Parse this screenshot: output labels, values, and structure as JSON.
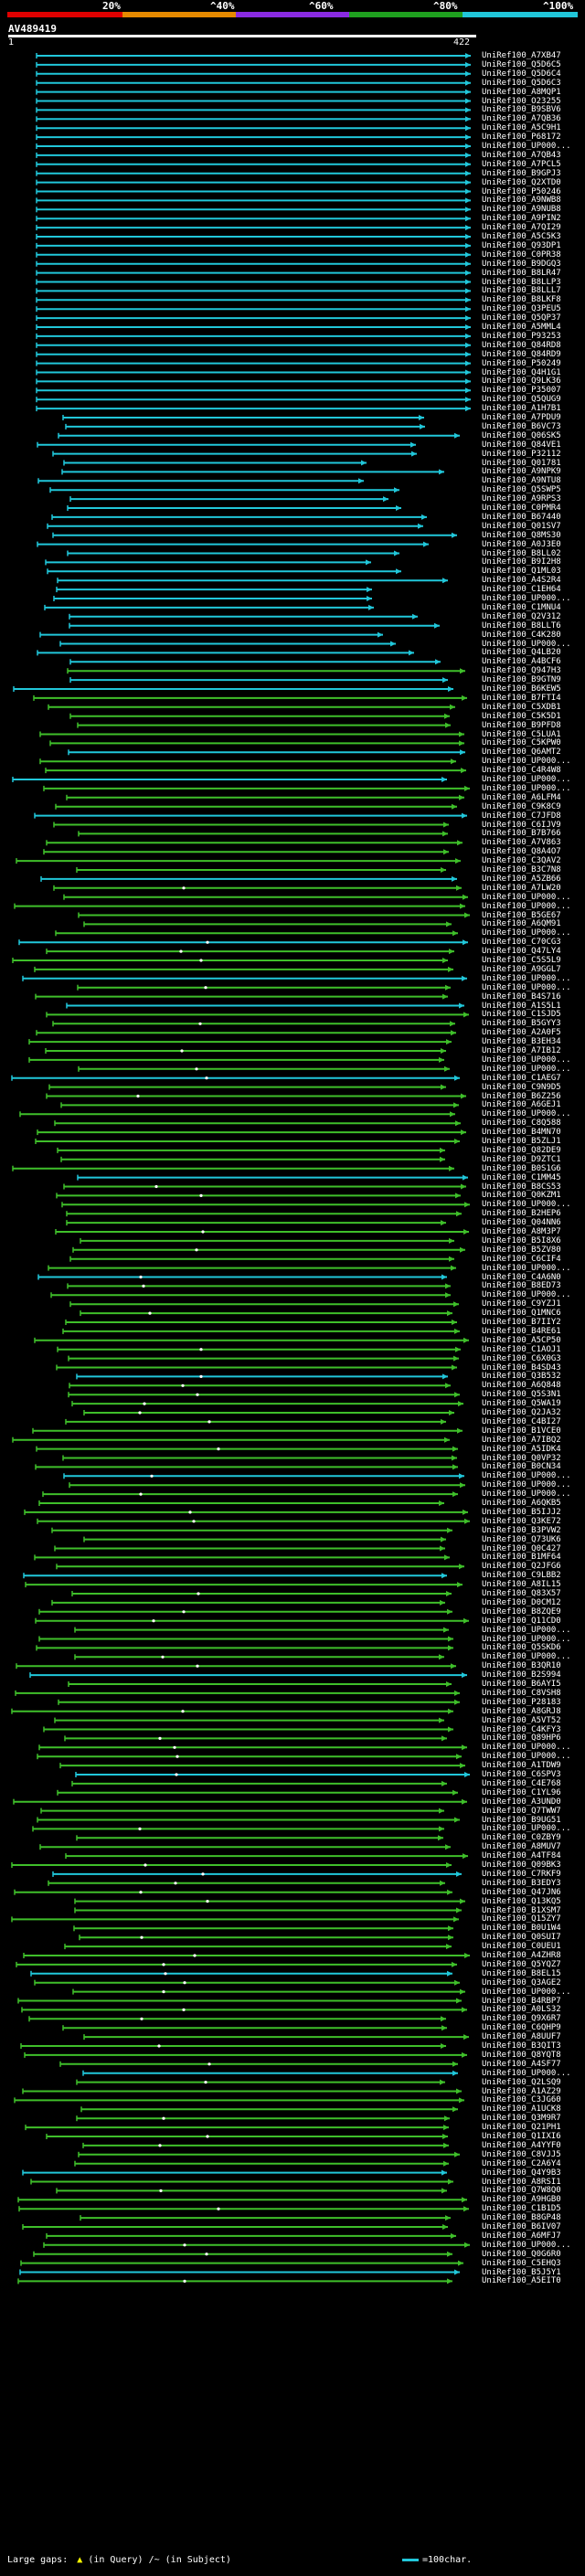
{
  "header": {
    "percent_labels": [
      "20%",
      "^40%",
      "^60%",
      "^80%",
      "^100%"
    ],
    "identity_colors": [
      "#e00000",
      "#e68a00",
      "#8a2be2",
      "#1fa01f",
      "#21c7da"
    ],
    "query_id": "AV489419",
    "scale_start": "1",
    "scale_end": "422"
  },
  "hits": [
    "UniRef100_A7XB47",
    "UniRef100_Q5D6C5",
    "UniRef100_Q5D6C4",
    "UniRef100_Q5D6C3",
    "UniRef100_A8MQP1",
    "UniRef100_O23255",
    "UniRef100_B9SBV6",
    "UniRef100_A7QB36",
    "UniRef100_A5C9H1",
    "UniRef100_P68172",
    "UniRef100_UP000...",
    "UniRef100_A7QB43",
    "UniRef100_A7PCL5",
    "UniRef100_B9GPJ3",
    "UniRef100_Q2XTD0",
    "UniRef100_P50246",
    "UniRef100_A9NWB8",
    "UniRef100_A9NUB8",
    "UniRef100_A9PIN2",
    "UniRef100_A7QI29",
    "UniRef100_A5C5K3",
    "UniRef100_Q93DP1",
    "UniRef100_C0PR38",
    "UniRef100_B9DGQ3",
    "UniRef100_B8LR47",
    "UniRef100_B8LLP3",
    "UniRef100_B8LLL7",
    "UniRef100_B8LKF8",
    "UniRef100_Q3PEU5",
    "UniRef100_Q5QP37",
    "UniRef100_A5MML4",
    "UniRef100_P93253",
    "UniRef100_Q84RD8",
    "UniRef100_Q84RD9",
    "UniRef100_P50249",
    "UniRef100_Q4H1G1",
    "UniRef100_Q9LK36",
    "UniRef100_P35007",
    "UniRef100_Q5QUG9",
    "UniRef100_A1H7B1",
    "UniRef100_A7PDU9",
    "UniRef100_B6VC73",
    "UniRef100_Q06SK5",
    "UniRef100_Q84VE1",
    "UniRef100_P32112",
    "UniRef100_Q01781",
    "UniRef100_A9NPK9",
    "UniRef100_A9NTU8",
    "UniRef100_Q5SWP5",
    "UniRef100_A9RPS3",
    "UniRef100_C0PMR4",
    "UniRef100_B67440",
    "UniRef100_Q01SV7",
    "UniRef100_Q8MS30",
    "UniRef100_A0J3E0",
    "UniRef100_B8LL02",
    "UniRef100_B9I2H8",
    "UniRef100_Q1ML03",
    "UniRef100_A4S2R4",
    "UniRef100_C1EH64",
    "UniRef100_UP000...",
    "UniRef100_C1MNU4",
    "UniRef100_Q2V312",
    "UniRef100_B8LLT6",
    "UniRef100_C4K280",
    "UniRef100_UP000...",
    "UniRef100_Q4LB20",
    "UniRef100_A4BCF6",
    "UniRef100_Q947H3",
    "UniRef100_B9GTN9",
    "UniRef100_B6KEW5",
    "UniRef100_B7FTI4",
    "UniRef100_C5XDB1",
    "UniRef100_C5K5D1",
    "UniRef100_B9PFD8",
    "UniRef100_C5LUA1",
    "UniRef100_C5KPW0",
    "UniRef100_Q6AMT2",
    "UniRef100_UP000...",
    "UniRef100_C4R4W8",
    "UniRef100_UP000...",
    "UniRef100_UP000...",
    "UniRef100_A6LFM4",
    "UniRef100_C9K8C9",
    "UniRef100_C7JFD8",
    "UniRef100_C6IJV9",
    "UniRef100_B7B766",
    "UniRef100_A7V863",
    "UniRef100_Q8A4O7",
    "UniRef100_C3QAV2",
    "UniRef100_B3C7N8",
    "UniRef100_A5ZB66",
    "UniRef100_A7LW20",
    "UniRef100_UP000...",
    "UniRef100_UP000...",
    "UniRef100_B5GE67",
    "UniRef100_A6QM91",
    "UniRef100_UP000...",
    "UniRef100_C70CG3",
    "UniRef100_Q47LY4",
    "UniRef100_C5S5L9",
    "UniRef100_A9GGL7",
    "UniRef100_UP000...",
    "UniRef100_UP000...",
    "UniRef100_B4S716",
    "UniRef100_A1S5L1",
    "UniRef100_C1SJD5",
    "UniRef100_B5GYY3",
    "UniRef100_A2A0F5",
    "UniRef100_B3EH34",
    "UniRef100_A7IB12",
    "UniRef100_UP000...",
    "UniRef100_UP000...",
    "UniRef100_C1AEG7",
    "UniRef100_C9N9D5",
    "UniRef100_B6Z256",
    "UniRef100_A6GEJ1",
    "UniRef100_UP000...",
    "UniRef100_C8Q588",
    "UniRef100_B4MN70",
    "UniRef100_B5ZLJ1",
    "UniRef100_Q82DE9",
    "UniRef100_D9ZTC1",
    "UniRef100_B0S1G6",
    "UniRef100_C1MM45",
    "UniRef100_B8CS53",
    "UniRef100_Q0KZM1",
    "UniRef100_UP000...",
    "UniRef100_B2HEP6",
    "UniRef100_Q04NN6",
    "UniRef100_A8M3P7",
    "UniRef100_B5I8X6",
    "UniRef100_B5ZV80",
    "UniRef100_C6CIF4",
    "UniRef100_UP000...",
    "UniRef100_C4A6N0",
    "UniRef100_B8ED73",
    "UniRef100_UP000...",
    "UniRef100_C9YZJ1",
    "UniRef100_Q1MNC6",
    "UniRef100_B7IIY2",
    "UniRef100_B4RE61",
    "UniRef100_A5CP50",
    "UniRef100_C1AOJ1",
    "UniRef100_C6X0G3",
    "UniRef100_B4SD43",
    "UniRef100_Q3B532",
    "UniRef100_A6Q848",
    "UniRef100_Q5S3N1",
    "UniRef100_Q5WA19",
    "UniRef100_Q2JA32",
    "UniRef100_C4BI27",
    "UniRef100_B1VCE0",
    "UniRef100_A7IBQ2",
    "UniRef100_A5IDK4",
    "UniRef100_Q0VP32",
    "UniRef100_B0CN34",
    "UniRef100_UP000...",
    "UniRef100_UP000...",
    "UniRef100_UP000...",
    "UniRef100_A6QKB5",
    "UniRef100_B5IJJ2",
    "UniRef100_Q3KE72",
    "UniRef100_B3PVW2",
    "UniRef100_Q73UK6",
    "UniRef100_Q0C427",
    "UniRef100_B1MF64",
    "UniRef100_Q2JFG6",
    "UniRef100_C9LBB2",
    "UniRef100_A8IL15",
    "UniRef100_Q83X57",
    "UniRef100_D0CM12",
    "UniRef100_B8ZQE9",
    "UniRef100_Q11CD0",
    "UniRef100_UP000...",
    "UniRef100_UP000...",
    "UniRef100_Q5SKD6",
    "UniRef100_UP000...",
    "UniRef100_B3QR10",
    "UniRef100_B2S994",
    "UniRef100_B6AYI5",
    "UniRef100_C8VSH8",
    "UniRef100_P28183",
    "UniRef100_A8GRJ8",
    "UniRef100_A5VT52",
    "UniRef100_C4KFY3",
    "UniRef100_Q89HP6",
    "UniRef100_UP000...",
    "UniRef100_UP000...",
    "UniRef100_A1TDW9",
    "UniRef100_C6SPV3",
    "UniRef100_C4E768",
    "UniRef100_C1YL96",
    "UniRef100_A3UND0",
    "UniRef100_Q7TWW7",
    "UniRef100_B9UG51",
    "UniRef100_UP000...",
    "UniRef100_C0ZBY9",
    "UniRef100_A8MUV7",
    "UniRef100_A4TF84",
    "UniRef100_Q09BK3",
    "UniRef100_C7RKF9",
    "UniRef100_B3EDY3",
    "UniRef100_Q47JN6",
    "UniRef100_Q13KQ5",
    "UniRef100_B1XSM7",
    "UniRef100_Q15ZY7",
    "UniRef100_B0U1W4",
    "UniRef100_Q0SUI7",
    "UniRef100_C0UEU1",
    "UniRef100_A4ZHR8",
    "UniRef100_Q5YQZ7",
    "UniRef100_B8EL15",
    "UniRef100_Q3AGE2",
    "UniRef100_UP000...",
    "UniRef100_B4RBP7",
    "UniRef100_A0LS32",
    "UniRef100_Q9X6R7",
    "UniRef100_C6QHP9",
    "UniRef100_A8UUF7",
    "UniRef100_B3QIT3",
    "UniRef100_Q8YQT8",
    "UniRef100_A4SF77",
    "UniRef100_UP000...",
    "UniRef100_Q2LSQ9",
    "UniRef100_A1AZ29",
    "UniRef100_C3JG60",
    "UniRef100_A1UCK8",
    "UniRef100_Q3M9R7",
    "UniRef100_Q21PH1",
    "UniRef100_Q1IXI6",
    "UniRef100_A4YYF0",
    "UniRef100_C8VJJ5",
    "UniRef100_C2A6Y4",
    "UniRef100_Q4Y9B3",
    "UniRef100_A8RSI1",
    "UniRef100_Q7W8Q0",
    "UniRef100_A9HGB0",
    "UniRef100_C1B1D5",
    "UniRef100_B8GP48",
    "UniRef100_B6IV07",
    "UniRef100_A6MFJ7",
    "UniRef100_UP000...",
    "UniRef100_Q0G6R0",
    "UniRef100_C5EHQ3",
    "UniRef100_B5J5Y1",
    "UniRef100_A5EIT0"
  ],
  "legend": {
    "large_gaps": "Large gaps:",
    "in_query": "(in Query)",
    "in_subject": "(in Subject)",
    "scale_note": "=100char."
  }
}
